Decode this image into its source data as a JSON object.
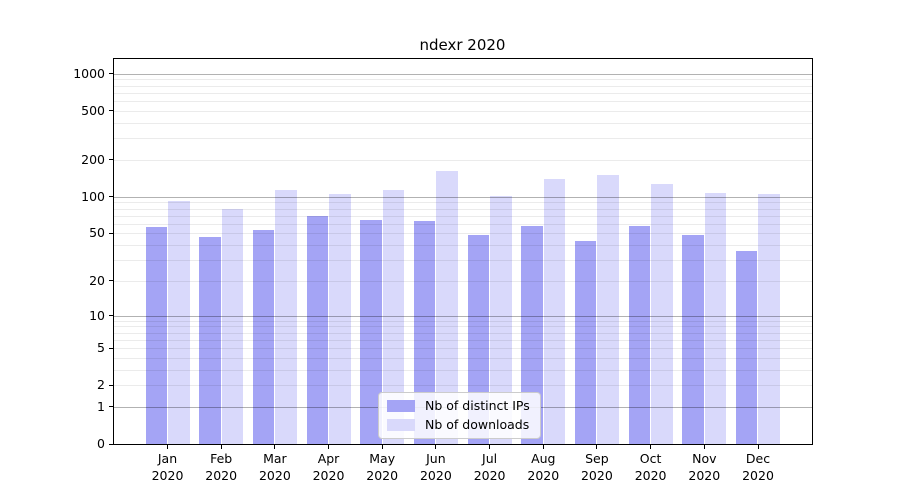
{
  "chart_data": {
    "type": "bar",
    "title": "ndexr 2020",
    "categories": [
      "Jan 2020",
      "Feb 2020",
      "Mar 2020",
      "Apr 2020",
      "May 2020",
      "Jun 2020",
      "Jul 2020",
      "Aug 2020",
      "Sep 2020",
      "Oct 2020",
      "Nov 2020",
      "Dec 2020"
    ],
    "series": [
      {
        "name": "Nb of distinct IPs",
        "color": "#a4a4f5",
        "values": [
          56,
          47,
          53,
          70,
          64,
          63,
          48,
          57,
          43,
          57,
          48,
          36
        ]
      },
      {
        "name": "Nb of downloads",
        "color": "#d9d9fb",
        "values": [
          92,
          79,
          113,
          106,
          113,
          161,
          102,
          139,
          150,
          126,
          108,
          106
        ]
      }
    ],
    "xlabel": "",
    "ylabel": "",
    "y_axis": {
      "scale": "log1p",
      "ticks": [
        0,
        1,
        2,
        5,
        10,
        20,
        50,
        100,
        200,
        500,
        1000
      ],
      "major_gridlines": [
        1,
        10,
        100,
        1000
      ],
      "ylim": [
        0,
        1317
      ]
    },
    "grid": true,
    "legend_position": "inside-bottom-center"
  }
}
